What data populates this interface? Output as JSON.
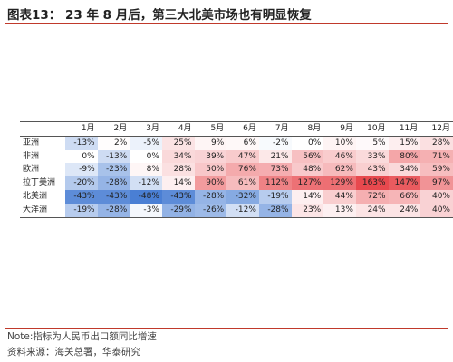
{
  "title": "图表13： 23 年 8 月后，第三大北美市场也有明显恢复",
  "note": "Note:指标为人民币出口额同比增速",
  "source": "资料来源：海关总署，华泰研究",
  "chart_data": {
    "type": "heatmap",
    "title": "图表13： 23 年 8 月后，第三大北美市场也有明显恢复",
    "columns": [
      "1月",
      "2月",
      "3月",
      "4月",
      "5月",
      "6月",
      "7月",
      "8月",
      "9月",
      "10月",
      "11月",
      "12月"
    ],
    "rows": [
      {
        "name": "亚洲",
        "values": [
          -13,
          2,
          -5,
          25,
          9,
          6,
          -2,
          0,
          10,
          5,
          15,
          28
        ]
      },
      {
        "name": "非洲",
        "values": [
          0,
          -13,
          0,
          34,
          39,
          47,
          21,
          56,
          46,
          33,
          80,
          71
        ]
      },
      {
        "name": "欧洲",
        "values": [
          -9,
          -23,
          8,
          28,
          50,
          76,
          73,
          48,
          62,
          43,
          34,
          59
        ]
      },
      {
        "name": "拉丁美洲",
        "values": [
          -20,
          -28,
          -12,
          14,
          90,
          61,
          112,
          127,
          129,
          163,
          147,
          97
        ]
      },
      {
        "name": "北美洲",
        "values": [
          -43,
          -43,
          -48,
          -43,
          -28,
          -32,
          -19,
          14,
          44,
          72,
          66,
          40
        ]
      },
      {
        "name": "大洋洲",
        "values": [
          -19,
          -28,
          -3,
          -29,
          -26,
          -12,
          -28,
          23,
          13,
          24,
          24,
          40
        ]
      }
    ],
    "unit": "%",
    "color_scale": {
      "negative": "#4a7fd4",
      "neutral": "#ffffff",
      "positive": "#e8494e"
    }
  }
}
